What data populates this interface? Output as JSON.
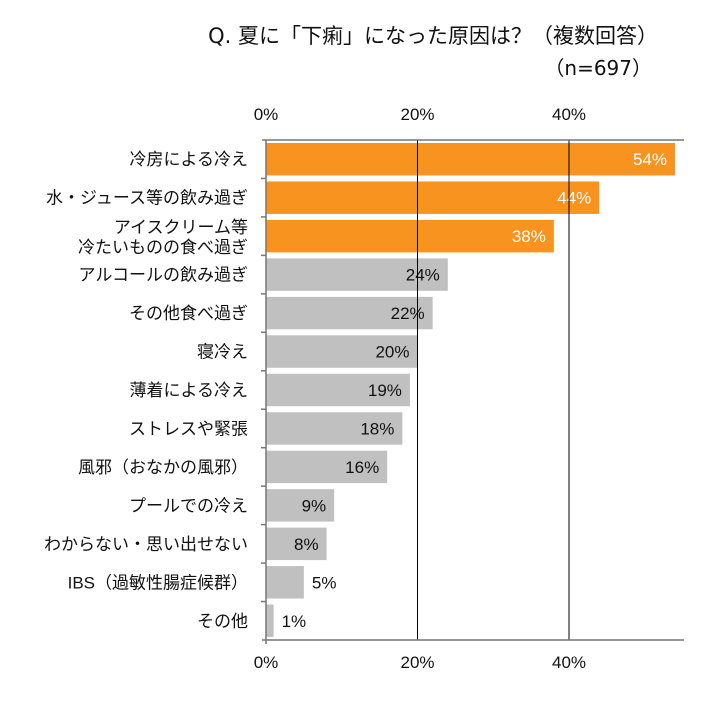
{
  "chart_data": {
    "type": "bar",
    "orientation": "horizontal",
    "title": "Q. 夏に「下痢」になった原因は？（複数回答）",
    "subtitle": "（n=697）",
    "categories": [
      "冷房による冷え",
      "水・ジュース等の飲み過ぎ",
      "アイスクリーム等\n冷たいものの食べ過ぎ",
      "アルコールの飲み過ぎ",
      "その他食べ過ぎ",
      "寝冷え",
      "薄着による冷え",
      "ストレスや緊張",
      "風邪（おなかの風邪）",
      "プールでの冷え",
      "わからない・思い出せない",
      "IBS（過敏性腸症候群）",
      "その他"
    ],
    "values": [
      54,
      44,
      38,
      24,
      22,
      20,
      19,
      18,
      16,
      9,
      8,
      5,
      1
    ],
    "data_labels": [
      "54%",
      "44%",
      "38%",
      "24%",
      "22%",
      "20%",
      "19%",
      "18%",
      "16%",
      "9%",
      "8%",
      "5%",
      "1%"
    ],
    "highlight_colors": [
      "#F7931E",
      "#F7931E",
      "#F7931E",
      "#C0C0C0",
      "#C0C0C0",
      "#C0C0C0",
      "#C0C0C0",
      "#C0C0C0",
      "#C0C0C0",
      "#C0C0C0",
      "#C0C0C0",
      "#C0C0C0",
      "#C0C0C0"
    ],
    "xlim": [
      0,
      55
    ],
    "xticks": [
      "0%",
      "20%",
      "40%"
    ],
    "xtick_values": [
      0,
      20,
      40
    ],
    "xaxis_position": "top-and-bottom",
    "grid": "vertical"
  }
}
